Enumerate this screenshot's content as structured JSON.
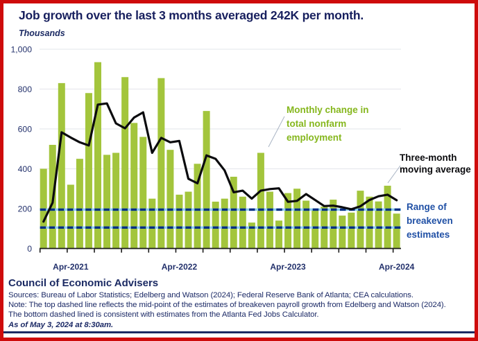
{
  "title": "Job growth over the last 3 months averaged 242K per month.",
  "y_axis_unit_label": "Thousands",
  "annotations": {
    "bars_label": "Monthly change in\ntotal nonfarm\nemployment",
    "ma_label": "Three-month\nmoving average",
    "range_label": "Range of\nbreakeven\nestimates"
  },
  "footer": {
    "org": "Council of Economic Advisers",
    "sources": "Sources: Bureau of Labor Statistics; Edelberg and Watson (2024); Federal Reserve Bank of Atlanta; CEA calculations.",
    "note1": "Note: The top dashed line reflects the mid-point of the estimates of breakeven payroll growth from Edelberg and Watson (2024).",
    "note2": "The bottom dashed lined is consistent with estimates from the Atlanta Fed Jobs Calculator.",
    "as_of": "As of May 3, 2024 at 8:30am."
  },
  "colors": {
    "bar_green": "#a3c53c",
    "ma_black": "#0b0b0e",
    "breakeven_navy": "#012d85",
    "breakeven_underlay": "#8ed1f0",
    "gridline": "#e8e9ee",
    "axis_black": "#1a1a1a",
    "label_navy": "#22306b",
    "leader_gray": "#a9b4c4",
    "border_red": "#ce0b0b",
    "text_navy": "#1b2a63",
    "annotation_green": "#86b71e",
    "annotation_blue": "#2050a5"
  },
  "chart_data": {
    "type": "bar",
    "title": "Job growth over the last 3 months averaged 242K per month.",
    "ylabel": "Thousands",
    "ylim": [
      0,
      1000
    ],
    "grid": "horizontal",
    "categories": [
      "Jan-2021",
      "Feb-2021",
      "Mar-2021",
      "Apr-2021",
      "May-2021",
      "Jun-2021",
      "Jul-2021",
      "Aug-2021",
      "Sep-2021",
      "Oct-2021",
      "Nov-2021",
      "Dec-2021",
      "Jan-2022",
      "Feb-2022",
      "Mar-2022",
      "Apr-2022",
      "May-2022",
      "Jun-2022",
      "Jul-2022",
      "Aug-2022",
      "Sep-2022",
      "Oct-2022",
      "Nov-2022",
      "Dec-2022",
      "Jan-2023",
      "Feb-2023",
      "Mar-2023",
      "Apr-2023",
      "May-2023",
      "Jun-2023",
      "Jul-2023",
      "Aug-2023",
      "Sep-2023",
      "Oct-2023",
      "Nov-2023",
      "Dec-2023",
      "Jan-2024",
      "Feb-2024",
      "Mar-2024",
      "Apr-2024"
    ],
    "series": [
      {
        "name": "Monthly change in total nonfarm employment",
        "kind": "bar",
        "values": [
          400,
          520,
          830,
          320,
          450,
          780,
          935,
          470,
          480,
          860,
          630,
          560,
          250,
          855,
          495,
          270,
          285,
          425,
          690,
          235,
          250,
          360,
          260,
          130,
          480,
          285,
          140,
          278,
          300,
          240,
          190,
          210,
          245,
          165,
          180,
          290,
          260,
          236,
          315,
          175
        ]
      },
      {
        "name": "Three-month moving average",
        "kind": "line",
        "values": [
          135,
          230,
          583,
          557,
          533,
          517,
          722,
          728,
          628,
          603,
          657,
          683,
          480,
          555,
          533,
          540,
          350,
          327,
          467,
          450,
          392,
          282,
          290,
          250,
          290,
          298,
          302,
          234,
          239,
          273,
          243,
          213,
          215,
          207,
          197,
          212,
          243,
          262,
          270,
          242
        ]
      }
    ],
    "reference_lines": [
      {
        "name": "breakeven-top",
        "value": 195,
        "style": "dashed"
      },
      {
        "name": "breakeven-bottom",
        "value": 105,
        "style": "dashed"
      }
    ],
    "yticks": [
      {
        "label": "0",
        "value": 0
      },
      {
        "label": "200",
        "value": 200
      },
      {
        "label": "400",
        "value": 400
      },
      {
        "label": "600",
        "value": 600
      },
      {
        "label": "800",
        "value": 800
      },
      {
        "label": "1,000",
        "value": 1000
      }
    ],
    "xticks": [
      {
        "label": "Apr-2021",
        "month": 3
      },
      {
        "label": "Apr-2022",
        "month": 15
      },
      {
        "label": "Apr-2023",
        "month": 27
      },
      {
        "label": "Apr-2024",
        "month": 39
      }
    ],
    "legend_position": "annotated-inline"
  }
}
